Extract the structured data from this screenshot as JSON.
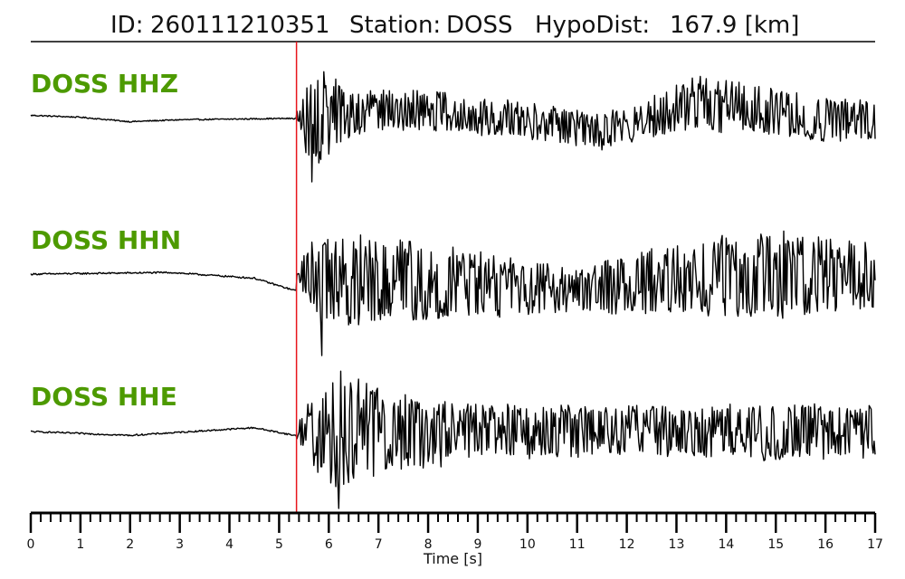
{
  "colors": {
    "label": "#4d9a00",
    "trace": "#000000",
    "pick_line": "#e8141b",
    "axis": "#000000"
  },
  "chart_data": {
    "type": "line",
    "title": {
      "id_label": "ID:",
      "id_value": "260111210351",
      "station_label": "Station:",
      "station_value": "DOSS",
      "dist_label": "HypoDist:",
      "dist_value": "167.9 [km]"
    },
    "xlabel": "Time [s]",
    "xlim": [
      0,
      17
    ],
    "x_ticks": [
      "0",
      "1",
      "2",
      "3",
      "4",
      "5",
      "6",
      "7",
      "8",
      "9",
      "10",
      "11",
      "12",
      "13",
      "14",
      "15",
      "16",
      "17"
    ],
    "minor_tick_step": 0.2,
    "grid": false,
    "pick_time": 5.35,
    "series": [
      {
        "name": "DOSS HHZ",
        "pre_event_trend": [
          [
            0,
            0.05
          ],
          [
            1,
            0.02
          ],
          [
            2,
            -0.05
          ],
          [
            3,
            -0.02
          ],
          [
            4,
            -0.01
          ],
          [
            5,
            0.0
          ],
          [
            5.35,
            0.0
          ]
        ],
        "envelope": [
          [
            5.35,
            0.1
          ],
          [
            5.6,
            1.0
          ],
          [
            5.9,
            0.85
          ],
          [
            6.5,
            0.45
          ],
          [
            8,
            0.4
          ],
          [
            10,
            0.35
          ],
          [
            12,
            0.35
          ],
          [
            13.5,
            0.55
          ],
          [
            15,
            0.45
          ],
          [
            17,
            0.4
          ]
        ],
        "envelope_drift": [
          [
            5.35,
            0.0
          ],
          [
            8,
            0.15
          ],
          [
            11.5,
            -0.2
          ],
          [
            13.5,
            0.25
          ],
          [
            16,
            0.0
          ],
          [
            17,
            -0.05
          ]
        ],
        "peak": [
          5.65,
          -1.0
        ]
      },
      {
        "name": "DOSS HHN",
        "pre_event_trend": [
          [
            0,
            0.0
          ],
          [
            2.8,
            0.02
          ],
          [
            4.5,
            -0.05
          ],
          [
            5.3,
            -0.2
          ]
        ],
        "envelope": [
          [
            5.35,
            0.1
          ],
          [
            5.8,
            0.75
          ],
          [
            7.5,
            0.6
          ],
          [
            9,
            0.5
          ],
          [
            11,
            0.35
          ],
          [
            13,
            0.55
          ],
          [
            15,
            0.65
          ],
          [
            17,
            0.5
          ]
        ],
        "envelope_drift": [
          [
            5.35,
            0.0
          ],
          [
            11,
            -0.2
          ],
          [
            14,
            0.0
          ],
          [
            17,
            0.0
          ]
        ],
        "peak": [
          5.85,
          -1.0
        ]
      },
      {
        "name": "DOSS HHE",
        "pre_event_trend": [
          [
            0,
            0.0
          ],
          [
            2,
            -0.05
          ],
          [
            4.5,
            0.05
          ],
          [
            5.3,
            -0.05
          ]
        ],
        "envelope": [
          [
            5.35,
            0.1
          ],
          [
            5.7,
            0.6
          ],
          [
            6.2,
            1.0
          ],
          [
            7,
            0.7
          ],
          [
            9,
            0.45
          ],
          [
            11,
            0.4
          ],
          [
            13,
            0.4
          ],
          [
            15,
            0.45
          ],
          [
            17,
            0.4
          ]
        ],
        "envelope_drift": [
          [
            5.35,
            0.0
          ],
          [
            17,
            0.0
          ]
        ],
        "peak": [
          6.2,
          -1.0
        ]
      }
    ]
  }
}
